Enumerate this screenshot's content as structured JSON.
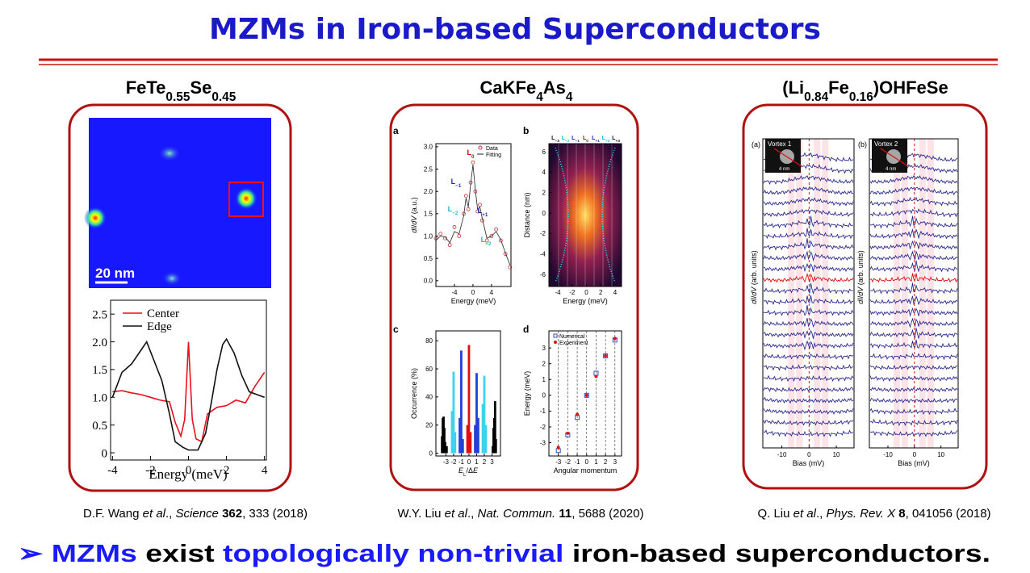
{
  "title": "MZMs in Iron-based Superconductors",
  "panels": [
    {
      "heading": [
        {
          "text": "FeTe"
        },
        {
          "text": "0.55",
          "sub": true
        },
        {
          "text": "Se"
        },
        {
          "text": "0.45",
          "sub": true
        }
      ],
      "map": {
        "scale_label": "20 nm"
      },
      "chart": {
        "type": "line",
        "xlabel": "Energy (meV)",
        "xlim": [
          -4.1,
          4.1
        ],
        "ylim": [
          -0.13,
          2.75
        ],
        "xticks": [
          -4,
          -2,
          0,
          2,
          4
        ],
        "yticks": [
          0,
          0.5,
          {
            "value": 1,
            "label": "1.0"
          },
          1.5,
          {
            "value": 2,
            "label": "2.0"
          },
          2.5
        ],
        "series": [
          {
            "name": "Center",
            "color": "#e8101a",
            "x": [
              -4,
              -3.5,
              -3,
              -2.5,
              -2,
              -1.5,
              -1,
              -0.7,
              -0.4,
              -0.2,
              0,
              0.2,
              0.4,
              0.7,
              1,
              1.5,
              2,
              2.5,
              3,
              3.5,
              4
            ],
            "values": [
              1.1,
              1.12,
              1.08,
              1.05,
              1.0,
              0.95,
              0.92,
              0.55,
              0.3,
              0.6,
              2.0,
              0.6,
              0.25,
              0.2,
              0.7,
              0.82,
              0.85,
              0.95,
              0.9,
              1.2,
              1.45
            ]
          },
          {
            "name": "Edge",
            "color": "#111111",
            "x": [
              -4,
              -3.5,
              -3,
              -2.5,
              -2.2,
              -1.8,
              -1.4,
              -1,
              -0.7,
              -0.3,
              0,
              0.5,
              0.9,
              1.2,
              1.5,
              1.8,
              2,
              2.4,
              2.8,
              3.2,
              3.6,
              4
            ],
            "values": [
              1.0,
              1.45,
              1.6,
              1.85,
              2.0,
              1.65,
              1.3,
              0.7,
              0.2,
              0.1,
              0.05,
              0.05,
              0.35,
              0.9,
              1.5,
              1.95,
              2.05,
              1.8,
              1.4,
              1.1,
              1.05,
              1.0
            ]
          }
        ]
      },
      "citation": [
        {
          "text": "D.F. Wang "
        },
        {
          "text": "et al",
          "italic": true
        },
        {
          "text": "., "
        },
        {
          "text": "Science",
          "italic": true
        },
        {
          "text": " "
        },
        {
          "text": "362",
          "bold": true
        },
        {
          "text": ", 333 (2018)"
        }
      ]
    },
    {
      "heading": [
        {
          "text": "CaKFe"
        },
        {
          "text": "4",
          "sub": true
        },
        {
          "text": "As"
        },
        {
          "text": "4",
          "sub": true
        }
      ],
      "subplots": [
        {
          "label": "a",
          "type": "line",
          "ylabel": [
            {
              "text": "dI",
              "italic": true
            },
            {
              "text": "/"
            },
            {
              "text": "dV",
              "italic": true
            },
            {
              "text": " (a.u.)"
            }
          ],
          "xlabel": "Energy (meV)",
          "xlim": [
            -8,
            8.2
          ],
          "ylim": [
            -0.13,
            3.07
          ],
          "xticks": [
            -4,
            0,
            4
          ],
          "yticks": [
            {
              "value": 0,
              "label": "0.0"
            },
            0.5,
            {
              "value": 1,
              "label": "1.0"
            },
            1.5,
            {
              "value": 2,
              "label": "2.0"
            },
            2.5,
            {
              "value": 3,
              "label": "3.0"
            }
          ],
          "peaks": [
            {
              "text": "L",
              "sub": "0",
              "color": "#c00000"
            },
            {
              "text": "L",
              "sub": "−1",
              "color": "#1a2aa8"
            },
            {
              "text": "L",
              "sub": "+1",
              "color": "#1a2aa8"
            },
            {
              "text": "L",
              "sub": "−2",
              "color": "#20b8d0"
            },
            {
              "text": "L",
              "sub": "+2",
              "color": "#20b8d0"
            }
          ],
          "series": [
            {
              "name": "Data",
              "color": "#c03030",
              "x": [
                -8,
                -7,
                -6,
                -5,
                -4,
                -3,
                -2,
                -1.5,
                -1,
                -0.5,
                0,
                0.5,
                1,
                1.5,
                2,
                3,
                4,
                5,
                6,
                7,
                8
              ],
              "values": [
                0.95,
                1.05,
                0.95,
                0.8,
                1.2,
                1.0,
                1.5,
                1.9,
                1.6,
                2.2,
                2.65,
                2.0,
                1.55,
                1.7,
                1.35,
                0.9,
                1.0,
                1.15,
                0.9,
                0.6,
                0.3
              ]
            },
            {
              "name": "Fitting",
              "color": "#222222",
              "x": [
                -8,
                -7,
                -6,
                -5,
                -4,
                -3,
                -2,
                -1.5,
                -1,
                -0.5,
                0,
                0.5,
                1,
                1.5,
                2,
                3,
                4,
                5,
                6,
                7,
                8
              ],
              "values": [
                0.9,
                1.0,
                0.98,
                0.85,
                1.1,
                1.05,
                1.45,
                1.85,
                1.65,
                2.15,
                2.6,
                2.05,
                1.6,
                1.65,
                1.4,
                0.95,
                1.0,
                1.1,
                0.92,
                0.62,
                0.35
              ]
            }
          ]
        },
        {
          "label": "b",
          "type": "heatmap",
          "ylabel": "Distance (nm)",
          "xlabel": "Energy (meV)",
          "xlim": [
            -5.24,
            4.9
          ],
          "ylim": [
            -7.18,
            6.79
          ],
          "xticks": [
            -4,
            -2,
            0,
            2,
            4
          ],
          "yticks": [
            -6,
            -4,
            -2,
            0,
            2,
            4,
            6
          ],
          "peaks": [
            {
              "text": "L",
              "sub": "−3",
              "color": "#111111"
            },
            {
              "text": "L",
              "sub": "−2",
              "color": "#20b8d0"
            },
            {
              "text": "L",
              "sub": "−1",
              "color": "#1a2aa8"
            },
            {
              "text": "L",
              "sub": "0",
              "color": "#c00000"
            },
            {
              "text": "L",
              "sub": "+1",
              "color": "#1a2aa8"
            },
            {
              "text": "L",
              "sub": "+2",
              "color": "#20b8d0"
            },
            {
              "text": "L",
              "sub": "+3",
              "color": "#111111"
            }
          ]
        },
        {
          "label": "c",
          "type": "bar",
          "ylabel": "Occurrence (%)",
          "xlabel": [
            {
              "text": "E",
              "italic": true
            },
            {
              "text": "L",
              "sub": true
            },
            {
              "text": "/Δ"
            },
            {
              "text": "E",
              "italic": true
            }
          ],
          "xlim": [
            -4.3,
            4.1
          ],
          "ylim": [
            -2,
            87
          ],
          "xticks": [
            -3,
            -2,
            -1,
            0,
            1,
            2,
            3
          ],
          "yticks": [
            0,
            20,
            40,
            60,
            80
          ],
          "series": [
            {
              "color": "#000000",
              "x": [
                -3.5,
                -3.4,
                -3.3,
                -3.2,
                -3.1,
                -2.9,
                3.1,
                3.2,
                3.3,
                3.4,
                3.5
              ],
              "values": [
                12,
                25,
                26,
                18,
                8,
                5,
                5,
                18,
                25,
                37,
                10
              ]
            },
            {
              "color": "#3ad4f0",
              "x": [
                -2.2,
                -2.0,
                -1.8,
                1.8,
                2.0,
                2.2
              ],
              "values": [
                30,
                58,
                15,
                35,
                55,
                20
              ]
            },
            {
              "color": "#2040d8",
              "x": [
                -1.2,
                -1.0,
                -0.8,
                0.8,
                1.0,
                1.2
              ],
              "values": [
                25,
                73,
                10,
                20,
                57,
                25
              ]
            },
            {
              "color": "#e01010",
              "x": [
                -0.2,
                0,
                0.2
              ],
              "values": [
                20,
                77,
                15
              ]
            }
          ]
        },
        {
          "label": "d",
          "type": "scatter",
          "ylabel": "Energy (meV)",
          "xlabel": "Angular momentum",
          "xlim": [
            -4,
            3.7
          ],
          "ylim": [
            -3.84,
            4.08
          ],
          "xticks": [
            -3,
            -2,
            -1,
            0,
            1,
            2,
            3
          ],
          "yticks": [
            -3,
            -2,
            -1,
            0,
            1,
            2,
            3
          ],
          "series": [
            {
              "name": "Numerical",
              "color": "#3050c0",
              "x": [
                -3,
                -2,
                -1,
                0,
                1,
                2,
                3
              ],
              "values": [
                -3.5,
                -2.5,
                -1.4,
                0,
                1.4,
                2.5,
                3.5
              ]
            },
            {
              "name": "Experiment",
              "color": "#e01010",
              "x": [
                -3,
                -2,
                -1,
                0,
                1,
                2,
                3
              ],
              "values": [
                -3.3,
                -2.4,
                -1.2,
                0,
                1.2,
                2.5,
                3.6
              ]
            }
          ]
        }
      ],
      "citation": [
        {
          "text": "W.Y. Liu "
        },
        {
          "text": "et al",
          "italic": true
        },
        {
          "text": "., "
        },
        {
          "text": "Nat. Commun.",
          "italic": true
        },
        {
          "text": " "
        },
        {
          "text": "11",
          "bold": true
        },
        {
          "text": ", 5688 (2020)"
        }
      ]
    },
    {
      "heading": [
        {
          "text": "(Li"
        },
        {
          "text": "0.84",
          "sub": true
        },
        {
          "text": "Fe"
        },
        {
          "text": "0.16",
          "sub": true
        },
        {
          "text": ")OHFeSe"
        }
      ],
      "plots": [
        {
          "label": "(a)",
          "inset": "Vortex 1"
        },
        {
          "label": "(b)",
          "inset": "Vortex 2"
        }
      ],
      "inset_scale": "4 nm",
      "ylabel": [
        {
          "text": "dI",
          "italic": true
        },
        {
          "text": "/"
        },
        {
          "text": "dV",
          "italic": true
        },
        {
          "text": " (arb. units)"
        }
      ],
      "xlabel": "Bias (mV)",
      "xlim": [
        -17,
        16.5
      ],
      "xticks": [
        -10,
        0,
        10
      ],
      "citation": [
        {
          "text": "Q. Liu "
        },
        {
          "text": "et al",
          "italic": true
        },
        {
          "text": "., "
        },
        {
          "text": "Phys. Rev. X",
          "italic": true
        },
        {
          "text": " "
        },
        {
          "text": "8",
          "bold": true
        },
        {
          "text": ", 041056 (2018)"
        }
      ]
    }
  ],
  "conclusion": [
    {
      "text": "➢ ",
      "color": "#1a1aff"
    },
    {
      "text": "MZMs",
      "color": "#1a1aff"
    },
    {
      "text": " exist ",
      "color": "#000000"
    },
    {
      "text": "topologically non-trivial",
      "color": "#1a1aff"
    },
    {
      "text": " iron-based superconductors.",
      "color": "#000000"
    }
  ]
}
